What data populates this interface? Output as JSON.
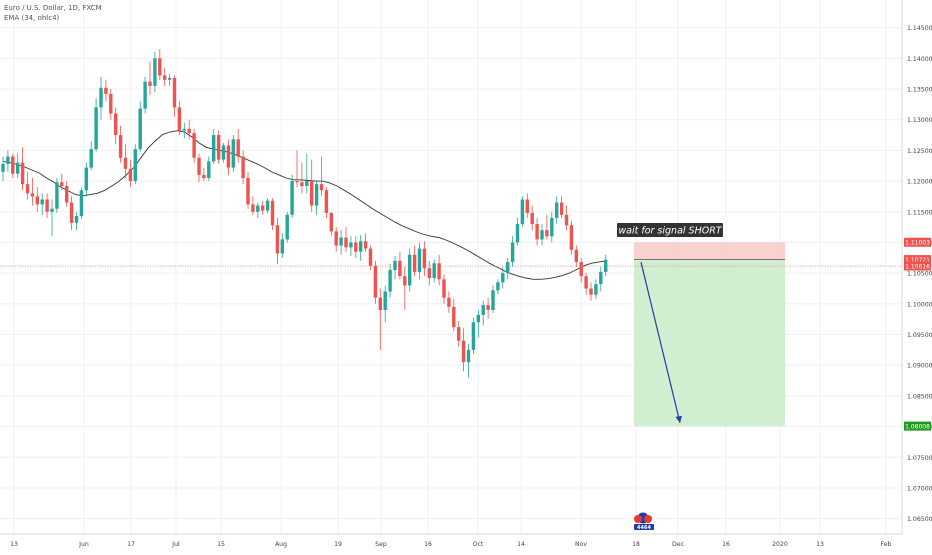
{
  "header": {
    "symbol": "Euro / U.S. Dollar, 1D, FXCM",
    "indicator": "EMA (34, ohlc4)"
  },
  "annotations": {
    "signal_text": "wait for signal SHORT",
    "logo_text": "4464"
  },
  "colors": {
    "up": "#26a69a",
    "down": "#ef5350",
    "ema": "#333333",
    "price_line": "#ef5350",
    "stop_zone": "#f9c9c7",
    "target_zone": "#cdeccb",
    "arrow": "#1f3ea8",
    "target_tag": "#1e9b1e",
    "grid": "#eef0f3"
  },
  "price_axis": {
    "ticks": [
      "1.14500",
      "1.14000",
      "1.13500",
      "1.13000",
      "1.12500",
      "1.12000",
      "1.11500",
      "1.11000",
      "1.10500",
      "1.10000",
      "1.09500",
      "1.09000",
      "1.08500",
      "1.08000",
      "1.07500",
      "1.07000",
      "1.06500"
    ],
    "tags": [
      {
        "label": "1.11003",
        "price": 1.11003,
        "color": "#ef5350"
      },
      {
        "label": "1.10721",
        "price": 1.10721,
        "color": "#ef5350"
      },
      {
        "label": "1.10616",
        "price": 1.10616,
        "color": "#ef5350"
      },
      {
        "label": "1.08008",
        "price": 1.08008,
        "color": "#1e9b1e"
      }
    ]
  },
  "time_axis": {
    "ticks": [
      "13",
      "Jun",
      "17",
      "Jul",
      "15",
      "Aug",
      "19",
      "Sep",
      "16",
      "Oct",
      "14",
      "Nov",
      "18",
      "Dec",
      "16",
      "2020",
      "13",
      "Feb"
    ]
  },
  "chart_data": {
    "type": "candlestick",
    "x_axis": "daily",
    "y_range": [
      1.0625,
      1.1495
    ],
    "series": [
      {
        "name": "EUR/USD",
        "ohlc": [
          [
            1.1215,
            1.124,
            1.12,
            1.1228
          ],
          [
            1.1228,
            1.125,
            1.1215,
            1.124
          ],
          [
            1.124,
            1.1245,
            1.1205,
            1.1212
          ],
          [
            1.1212,
            1.1245,
            1.1205,
            1.123
          ],
          [
            1.123,
            1.1255,
            1.1185,
            1.1195
          ],
          [
            1.1195,
            1.1215,
            1.117,
            1.118
          ],
          [
            1.118,
            1.1205,
            1.116,
            1.1175
          ],
          [
            1.1175,
            1.119,
            1.115,
            1.1162
          ],
          [
            1.1162,
            1.118,
            1.1145,
            1.117
          ],
          [
            1.117,
            1.118,
            1.114,
            1.115
          ],
          [
            1.115,
            1.117,
            1.111,
            1.1155
          ],
          [
            1.1155,
            1.1205,
            1.1148,
            1.1198
          ],
          [
            1.1198,
            1.1212,
            1.1185,
            1.1192
          ],
          [
            1.1192,
            1.12,
            1.1158,
            1.1165
          ],
          [
            1.1165,
            1.1175,
            1.112,
            1.1132
          ],
          [
            1.1132,
            1.115,
            1.112,
            1.1143
          ],
          [
            1.1143,
            1.119,
            1.1138,
            1.1185
          ],
          [
            1.1185,
            1.123,
            1.1175,
            1.1222
          ],
          [
            1.1222,
            1.1265,
            1.1218,
            1.1252
          ],
          [
            1.1252,
            1.1335,
            1.1248,
            1.132
          ],
          [
            1.132,
            1.137,
            1.13,
            1.1352
          ],
          [
            1.1352,
            1.1365,
            1.133,
            1.1342
          ],
          [
            1.1342,
            1.135,
            1.13,
            1.131
          ],
          [
            1.131,
            1.132,
            1.126,
            1.1275
          ],
          [
            1.1275,
            1.129,
            1.123,
            1.1238
          ],
          [
            1.1238,
            1.126,
            1.1205,
            1.122
          ],
          [
            1.122,
            1.1235,
            1.119,
            1.12
          ],
          [
            1.12,
            1.126,
            1.1195,
            1.1252
          ],
          [
            1.1252,
            1.133,
            1.1248,
            1.1318
          ],
          [
            1.1318,
            1.137,
            1.131,
            1.1362
          ],
          [
            1.1362,
            1.1395,
            1.134,
            1.1355
          ],
          [
            1.1355,
            1.141,
            1.1345,
            1.14
          ],
          [
            1.14,
            1.1415,
            1.1365,
            1.1372
          ],
          [
            1.1372,
            1.1385,
            1.1355,
            1.1365
          ],
          [
            1.1365,
            1.1375,
            1.1355,
            1.1368
          ],
          [
            1.1368,
            1.1372,
            1.1305,
            1.132
          ],
          [
            1.132,
            1.133,
            1.1275,
            1.1282
          ],
          [
            1.1282,
            1.1295,
            1.127,
            1.1285
          ],
          [
            1.1285,
            1.13,
            1.1268,
            1.1278
          ],
          [
            1.1278,
            1.1285,
            1.123,
            1.1238
          ],
          [
            1.1238,
            1.1245,
            1.1198,
            1.121
          ],
          [
            1.121,
            1.1222,
            1.12,
            1.1205
          ],
          [
            1.1205,
            1.124,
            1.12,
            1.1232
          ],
          [
            1.1232,
            1.1285,
            1.1228,
            1.1275
          ],
          [
            1.1275,
            1.1282,
            1.1228,
            1.1235
          ],
          [
            1.1235,
            1.1262,
            1.123,
            1.1258
          ],
          [
            1.1258,
            1.1268,
            1.121,
            1.1222
          ],
          [
            1.1222,
            1.1275,
            1.1215,
            1.1268
          ],
          [
            1.1268,
            1.1285,
            1.123,
            1.124
          ],
          [
            1.124,
            1.125,
            1.1195,
            1.1205
          ],
          [
            1.1205,
            1.1215,
            1.1155,
            1.1162
          ],
          [
            1.1162,
            1.1175,
            1.1145,
            1.115
          ],
          [
            1.115,
            1.1165,
            1.114,
            1.116
          ],
          [
            1.116,
            1.1168,
            1.1145,
            1.1152
          ],
          [
            1.1152,
            1.1172,
            1.1148,
            1.1168
          ],
          [
            1.1168,
            1.1172,
            1.112,
            1.1128
          ],
          [
            1.1128,
            1.114,
            1.1065,
            1.1082
          ],
          [
            1.1082,
            1.1115,
            1.1075,
            1.1105
          ],
          [
            1.1105,
            1.115,
            1.11,
            1.1145
          ],
          [
            1.1145,
            1.121,
            1.114,
            1.12
          ],
          [
            1.12,
            1.125,
            1.119,
            1.1198
          ],
          [
            1.1198,
            1.123,
            1.118,
            1.1192
          ],
          [
            1.1192,
            1.1245,
            1.118,
            1.12
          ],
          [
            1.12,
            1.1235,
            1.115,
            1.116
          ],
          [
            1.116,
            1.12,
            1.1145,
            1.1195
          ],
          [
            1.1195,
            1.124,
            1.1175,
            1.1185
          ],
          [
            1.1185,
            1.119,
            1.114,
            1.1148
          ],
          [
            1.1148,
            1.115,
            1.111,
            1.1118
          ],
          [
            1.1118,
            1.1125,
            1.1085,
            1.1095
          ],
          [
            1.1095,
            1.112,
            1.108,
            1.1108
          ],
          [
            1.1108,
            1.1125,
            1.1085,
            1.1092
          ],
          [
            1.1092,
            1.111,
            1.1078,
            1.11
          ],
          [
            1.11,
            1.111,
            1.1075,
            1.1085
          ],
          [
            1.1085,
            1.1112,
            1.107,
            1.1102
          ],
          [
            1.1102,
            1.1115,
            1.1085,
            1.109
          ],
          [
            1.109,
            1.1095,
            1.1055,
            1.1062
          ],
          [
            1.1062,
            1.107,
            1.1,
            1.101
          ],
          [
            1.101,
            1.1025,
            1.0925,
            1.099
          ],
          [
            1.099,
            1.103,
            1.097,
            1.102
          ],
          [
            1.102,
            1.1065,
            1.101,
            1.1055
          ],
          [
            1.1055,
            1.1078,
            1.104,
            1.107
          ],
          [
            1.107,
            1.1085,
            1.104,
            1.1045
          ],
          [
            1.1045,
            1.106,
            1.099,
            1.103
          ],
          [
            1.103,
            1.109,
            1.102,
            1.108
          ],
          [
            1.108,
            1.1095,
            1.1045,
            1.1052
          ],
          [
            1.1052,
            1.11,
            1.104,
            1.109
          ],
          [
            1.109,
            1.1102,
            1.1045,
            1.1058
          ],
          [
            1.1058,
            1.107,
            1.103,
            1.1042
          ],
          [
            1.1042,
            1.1072,
            1.1035,
            1.1066
          ],
          [
            1.1066,
            1.108,
            1.103,
            1.104
          ],
          [
            1.104,
            1.1048,
            1.1,
            1.101
          ],
          [
            1.101,
            1.102,
            1.0985,
            1.0995
          ],
          [
            1.0995,
            1.1008,
            1.0955,
            1.0962
          ],
          [
            1.0962,
            1.0972,
            1.093,
            1.094
          ],
          [
            1.094,
            1.096,
            1.089,
            1.0905
          ],
          [
            1.0905,
            1.0935,
            1.088,
            1.0925
          ],
          [
            1.0925,
            1.0978,
            1.0918,
            1.097
          ],
          [
            1.097,
            1.099,
            1.0945,
            1.0982
          ],
          [
            1.0982,
            1.1005,
            1.0965,
            1.0998
          ],
          [
            1.0998,
            1.101,
            1.0975,
            1.099
          ],
          [
            1.099,
            1.103,
            1.0985,
            1.1022
          ],
          [
            1.1022,
            1.104,
            1.1015,
            1.1035
          ],
          [
            1.1035,
            1.106,
            1.1025,
            1.105
          ],
          [
            1.105,
            1.1075,
            1.104,
            1.1068
          ],
          [
            1.1068,
            1.111,
            1.106,
            1.11
          ],
          [
            1.11,
            1.114,
            1.1095,
            1.113
          ],
          [
            1.113,
            1.1175,
            1.1125,
            1.117
          ],
          [
            1.117,
            1.118,
            1.114,
            1.1148
          ],
          [
            1.1148,
            1.116,
            1.112,
            1.113
          ],
          [
            1.113,
            1.114,
            1.1095,
            1.1105
          ],
          [
            1.1105,
            1.113,
            1.1095,
            1.112
          ],
          [
            1.112,
            1.1145,
            1.1105,
            1.111
          ],
          [
            1.111,
            1.115,
            1.11,
            1.114
          ],
          [
            1.114,
            1.1175,
            1.113,
            1.1165
          ],
          [
            1.1165,
            1.1175,
            1.114,
            1.1145
          ],
          [
            1.1145,
            1.116,
            1.112,
            1.1128
          ],
          [
            1.1128,
            1.1135,
            1.108,
            1.1088
          ],
          [
            1.1088,
            1.1095,
            1.106,
            1.1068
          ],
          [
            1.1068,
            1.1075,
            1.1035,
            1.1045
          ],
          [
            1.1045,
            1.105,
            1.1015,
            1.1025
          ],
          [
            1.1025,
            1.1035,
            1.1005,
            1.1015
          ],
          [
            1.1015,
            1.104,
            1.1008,
            1.1032
          ],
          [
            1.1032,
            1.106,
            1.102,
            1.1052
          ],
          [
            1.1052,
            1.108,
            1.1045,
            1.1072
          ]
        ]
      },
      {
        "name": "EMA (34, ohlc4)",
        "values": [
          1.1232,
          1.123,
          1.1227,
          1.1223,
          1.1218,
          1.1213,
          1.1205,
          1.1198,
          1.119,
          1.1184,
          1.1178,
          1.1176,
          1.1178,
          1.118,
          1.1185,
          1.1192,
          1.12,
          1.121,
          1.1222,
          1.1238,
          1.1254,
          1.1266,
          1.1276,
          1.128,
          1.1282,
          1.128,
          1.1272,
          1.1262,
          1.1255,
          1.1252,
          1.125,
          1.1247,
          1.1243,
          1.1238,
          1.1233,
          1.1228,
          1.1222,
          1.1215,
          1.121,
          1.1205,
          1.1202,
          1.1202,
          1.1201,
          1.12,
          1.12,
          1.1197,
          1.1192,
          1.1185,
          1.1178,
          1.117,
          1.1162,
          1.1154,
          1.1147,
          1.114,
          1.1133,
          1.1127,
          1.1122,
          1.1117,
          1.1113,
          1.111,
          1.1108,
          1.1104,
          1.1099,
          1.1093,
          1.1087,
          1.108,
          1.1073,
          1.1066,
          1.106,
          1.1054,
          1.1049,
          1.1045,
          1.1042,
          1.104,
          1.104,
          1.1041,
          1.1043,
          1.1046,
          1.105,
          1.1056,
          1.1062,
          1.1066,
          1.1068,
          1.107
        ]
      }
    ],
    "trade_setup": {
      "direction": "short",
      "entry": 1.10721,
      "stop": 1.11003,
      "target": 1.08008,
      "current_price": 1.10616
    }
  }
}
